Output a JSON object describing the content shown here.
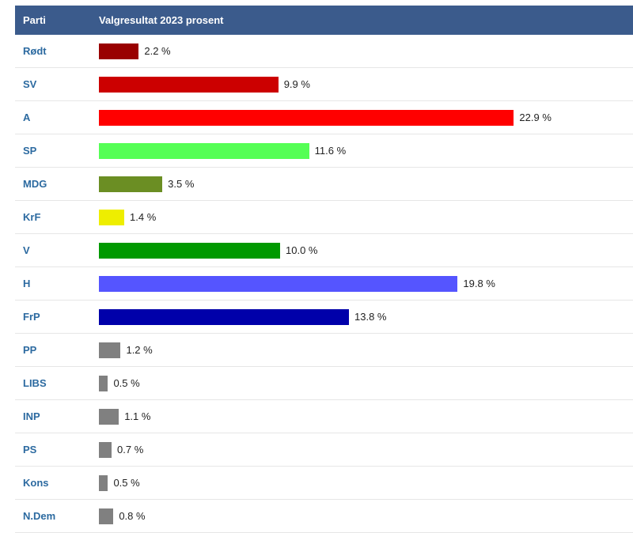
{
  "header": {
    "party_col": "Parti",
    "value_col": "Valgresultat 2023 prosent"
  },
  "chart_data": {
    "type": "bar",
    "orientation": "horizontal",
    "title": "Valgresultat 2023 prosent",
    "unit": "%",
    "categories": [
      "Rødt",
      "SV",
      "A",
      "SP",
      "MDG",
      "KrF",
      "V",
      "H",
      "FrP",
      "PP",
      "LIBS",
      "INP",
      "PS",
      "Kons",
      "N.Dem"
    ],
    "values": [
      2.2,
      9.9,
      22.9,
      11.6,
      3.5,
      1.4,
      10.0,
      19.8,
      13.8,
      1.2,
      0.5,
      1.1,
      0.7,
      0.5,
      0.8
    ],
    "labels": [
      "2.2 %",
      "9.9 %",
      "22.9 %",
      "11.6 %",
      "3.5 %",
      "1.4 %",
      "10.0 %",
      "19.8 %",
      "13.8 %",
      "1.2 %",
      "0.5 %",
      "1.1 %",
      "0.7 %",
      "0.5 %",
      "0.8 %"
    ],
    "colors": [
      "#990000",
      "#cc0000",
      "#ff0000",
      "#55ff55",
      "#6b8e23",
      "#eeee00",
      "#009900",
      "#5555ff",
      "#0000aa",
      "#808080",
      "#808080",
      "#808080",
      "#808080",
      "#808080",
      "#808080"
    ]
  }
}
